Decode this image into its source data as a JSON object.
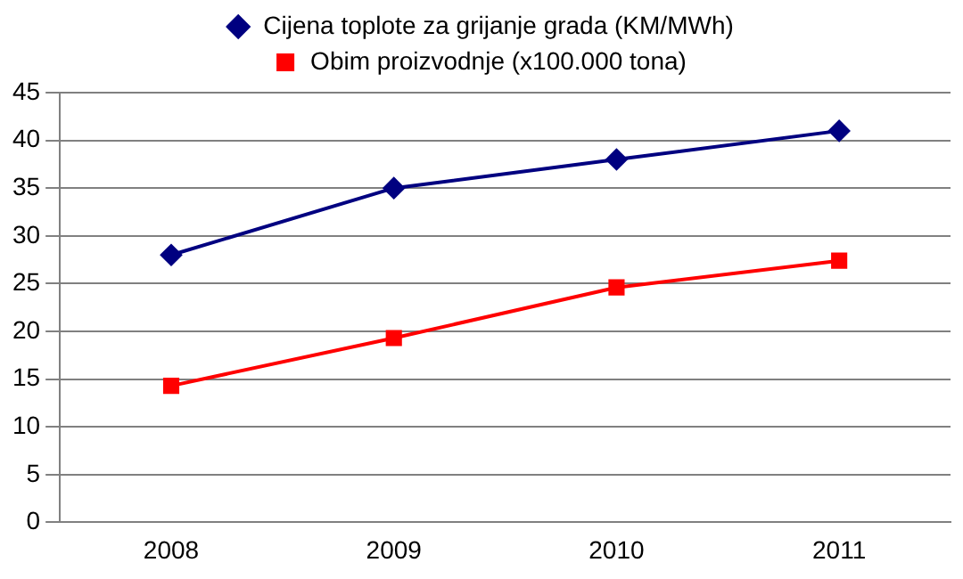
{
  "chart_data": {
    "type": "line",
    "categories": [
      "2008",
      "2009",
      "2010",
      "2011"
    ],
    "series": [
      {
        "name": "Cijena toplote za grijanje grada (KM/MWh)",
        "color": "#000080",
        "marker": "diamond",
        "values": [
          28,
          35,
          38,
          41
        ]
      },
      {
        "name": "Obim proizvodnje (x100.000 tona)",
        "color": "#ff0000",
        "marker": "square",
        "values": [
          14.3,
          19.3,
          24.6,
          27.4
        ]
      }
    ],
    "ylim": [
      0,
      45
    ],
    "yticks": [
      0,
      5,
      10,
      15,
      20,
      25,
      30,
      35,
      40,
      45
    ],
    "grid": "y",
    "legend": "top",
    "line_style": "solid"
  }
}
